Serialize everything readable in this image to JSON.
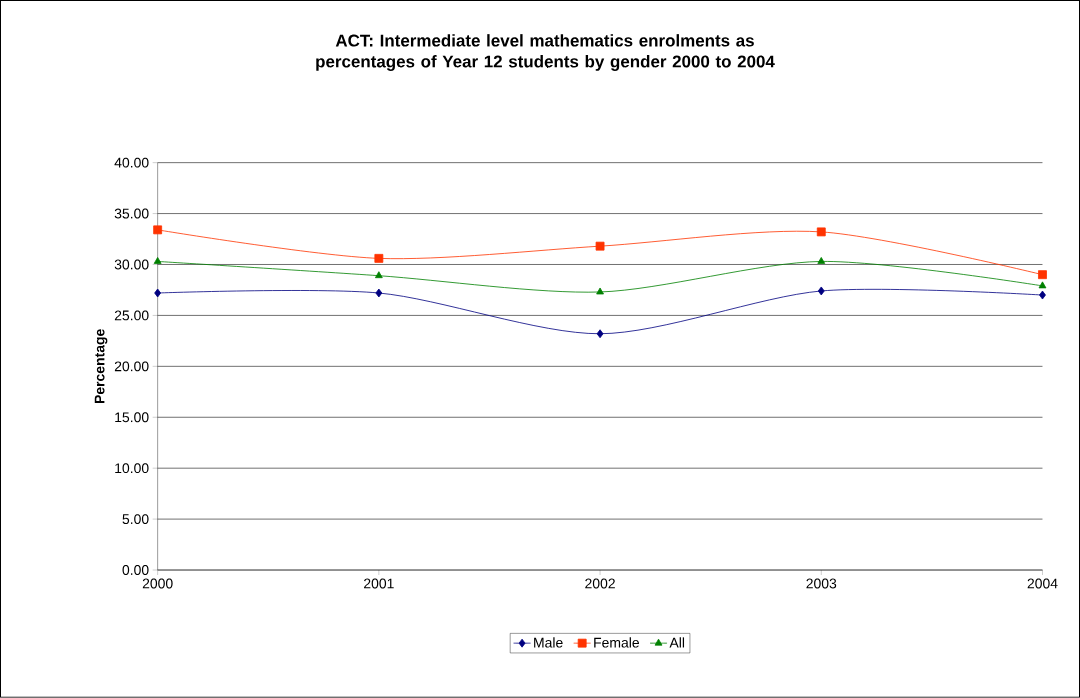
{
  "chart_data": {
    "type": "line",
    "title": "ACT: Intermediate level mathematics enrolments as percentages of Year 12 students by gender 2000 to 2004",
    "ylabel": "Percentage",
    "categories": [
      "2000",
      "2001",
      "2002",
      "2003",
      "2004"
    ],
    "series": [
      {
        "name": "Male",
        "color": "#000080",
        "marker": "diamond",
        "values": [
          27.2,
          27.2,
          23.2,
          27.4,
          27.0
        ]
      },
      {
        "name": "Female",
        "color": "#ff3300",
        "marker": "square",
        "values": [
          33.4,
          30.6,
          31.8,
          33.2,
          29.0
        ]
      },
      {
        "name": "All",
        "color": "#008000",
        "marker": "triangle",
        "values": [
          30.3,
          28.9,
          27.3,
          30.3,
          27.9
        ]
      }
    ],
    "ylim": [
      0,
      40
    ],
    "yticks": [
      {
        "value": 0,
        "label": "0.00"
      },
      {
        "value": 5,
        "label": "5.00"
      },
      {
        "value": 10,
        "label": "10.00"
      },
      {
        "value": 15,
        "label": "15.00"
      },
      {
        "value": 20,
        "label": "20.00"
      },
      {
        "value": 25,
        "label": "25.00"
      },
      {
        "value": 30,
        "label": "30.00"
      },
      {
        "value": 35,
        "label": "35.00"
      },
      {
        "value": 40,
        "label": "40.00"
      }
    ],
    "grid": "y",
    "legend": "bottom",
    "line_style": "solid"
  }
}
